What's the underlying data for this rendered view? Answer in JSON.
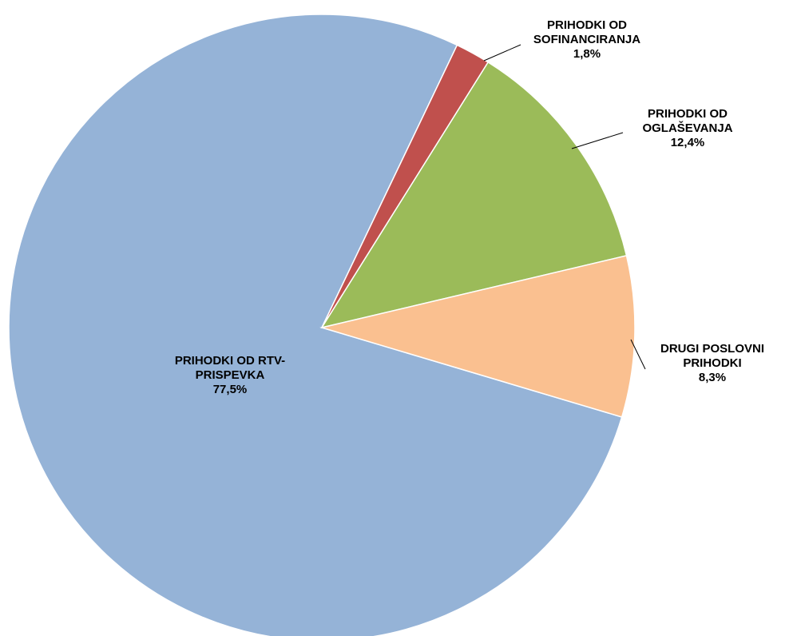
{
  "chart_data": {
    "type": "pie",
    "categories": [
      "PRIHODKI OD RTV-PRISPEVKA",
      "PRIHODKI OD SOFINANCIRANJA",
      "PRIHODKI OD OGLAŠEVANJA",
      "DRUGI POSLOVNI PRIHODKI"
    ],
    "values": [
      77.5,
      1.8,
      12.4,
      8.3
    ],
    "value_labels": [
      "77,5%",
      "1,8%",
      "12,4%",
      "8,3%"
    ],
    "colors": [
      "#95b3d7",
      "#c0504d",
      "#9bbb59",
      "#fac090"
    ]
  }
}
